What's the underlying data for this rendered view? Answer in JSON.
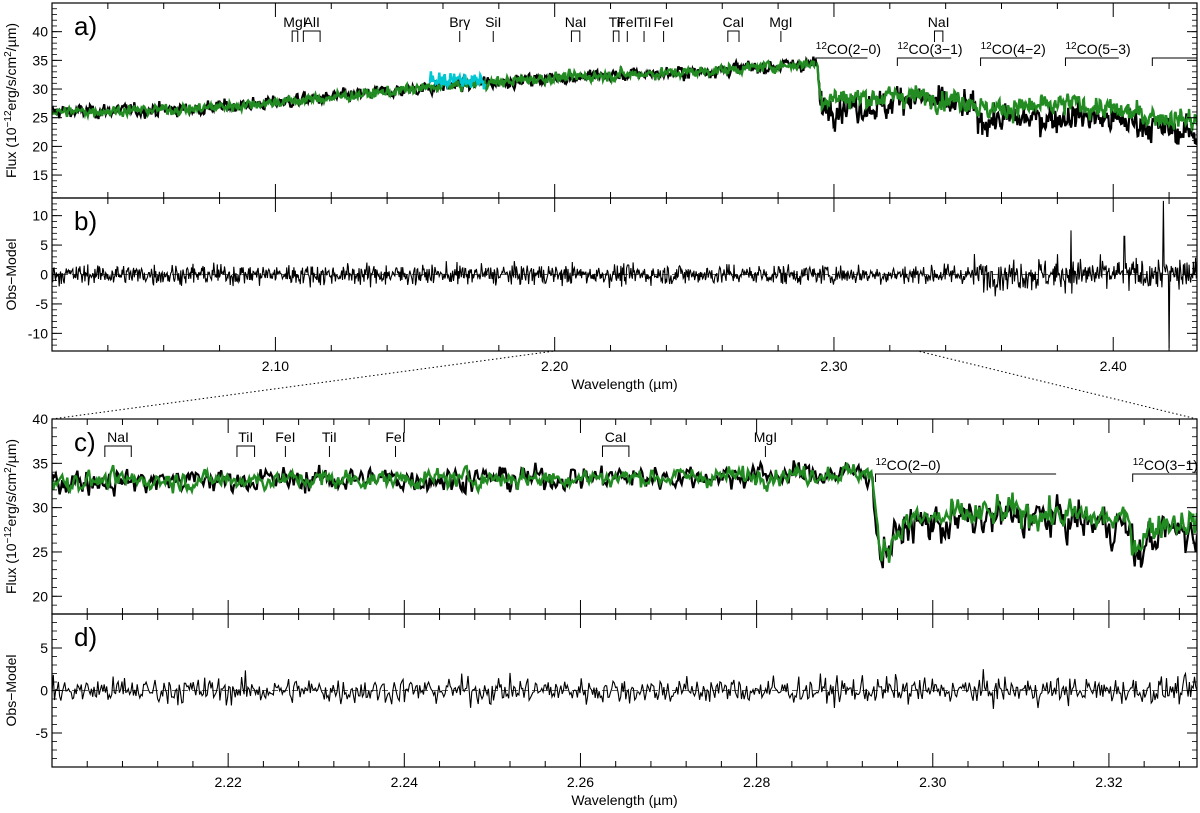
{
  "chart_data": [
    {
      "panel": "a)",
      "type": "line",
      "ylabel": "Flux (10^-12 erg/s/cm^2/µm)",
      "ylabel_parts": [
        "Flux (10",
        "−12",
        "erg/s/cm",
        "2",
        "/µm)"
      ],
      "xlim": [
        2.02,
        2.43
      ],
      "ylim": [
        11,
        45
      ],
      "yticks": [
        15,
        20,
        25,
        30,
        35,
        40
      ],
      "xticks": [
        2.1,
        2.2,
        2.3,
        2.4
      ],
      "series": [
        {
          "color": "#000000",
          "trend": [
            [
              2.02,
              26.0
            ],
            [
              2.07,
              26.5
            ],
            [
              2.12,
              28.5
            ],
            [
              2.16,
              30.5
            ],
            [
              2.2,
              32.0
            ],
            [
              2.25,
              33.0
            ],
            [
              2.294,
              34.5
            ],
            [
              2.295,
              27.0
            ],
            [
              2.32,
              27.0
            ],
            [
              2.323,
              29.0
            ],
            [
              2.35,
              26.5
            ],
            [
              2.352,
              24.5
            ],
            [
              2.38,
              25.0
            ],
            [
              2.385,
              25.5
            ],
            [
              2.41,
              24.0
            ],
            [
              2.43,
              22.0
            ]
          ]
        },
        {
          "color": "#228b22",
          "trend": [
            [
              2.02,
              26.0
            ],
            [
              2.07,
              26.5
            ],
            [
              2.12,
              28.5
            ],
            [
              2.16,
              30.5
            ],
            [
              2.2,
              32.0
            ],
            [
              2.25,
              33.0
            ],
            [
              2.294,
              34.5
            ],
            [
              2.295,
              28.5
            ],
            [
              2.32,
              28.5
            ],
            [
              2.323,
              29.0
            ],
            [
              2.35,
              28.0
            ],
            [
              2.352,
              26.5
            ],
            [
              2.38,
              27.0
            ],
            [
              2.385,
              27.5
            ],
            [
              2.41,
              25.5
            ],
            [
              2.43,
              24.5
            ]
          ]
        },
        {
          "color": "#00c8d2",
          "x_range": [
            2.155,
            2.175
          ],
          "level": 31.5
        }
      ],
      "line_markers": [
        {
          "label": "MgI",
          "x": [
            2.106,
            2.108
          ]
        },
        {
          "label": "AlI",
          "x": [
            2.11,
            2.116
          ]
        },
        {
          "label": "Brγ",
          "x": [
            2.166
          ]
        },
        {
          "label": "SiI",
          "x": [
            2.178
          ]
        },
        {
          "label": "NaI",
          "x": [
            2.206,
            2.209
          ]
        },
        {
          "label": "TiI",
          "x": [
            2.221,
            2.223
          ]
        },
        {
          "label": "FeI",
          "x": [
            2.226
          ]
        },
        {
          "label": "TiI",
          "x": [
            2.232
          ]
        },
        {
          "label": "FeI",
          "x": [
            2.239
          ]
        },
        {
          "label": "CaI",
          "x": [
            2.262,
            2.266
          ]
        },
        {
          "label": "MgI",
          "x": [
            2.281
          ]
        },
        {
          "label": "NaI",
          "x": [
            2.336,
            2.339
          ]
        }
      ],
      "bandheads": [
        {
          "label": "CO(2−0)",
          "sup": "12",
          "x": [
            2.2935,
            2.312
          ]
        },
        {
          "label": "CO(3−1)",
          "sup": "12",
          "x": [
            2.3227,
            2.342
          ]
        },
        {
          "label": "CO(4−2)",
          "sup": "12",
          "x": [
            2.3525,
            2.371
          ]
        },
        {
          "label": "CO(5−3)",
          "sup": "12",
          "x": [
            2.3829,
            2.402
          ]
        },
        {
          "label": "",
          "x": [
            2.414,
            2.43
          ]
        }
      ]
    },
    {
      "panel": "b)",
      "type": "line",
      "ylabel": "Obs−Model",
      "xlabel": "Wavelength (µm)",
      "xlim": [
        2.02,
        2.43
      ],
      "ylim": [
        -13,
        13
      ],
      "yticks": [
        -10,
        -5,
        0,
        5,
        10
      ],
      "xticks": [
        2.1,
        2.2,
        2.3,
        2.4
      ],
      "series": [
        {
          "color": "#000000",
          "mean": 0,
          "spikes": [
            [
              2.385,
              7.5
            ],
            [
              2.404,
              6.5
            ],
            [
              2.418,
              12.5
            ],
            [
              2.42,
              -12.5
            ]
          ]
        }
      ],
      "zero_line": "dashed"
    },
    {
      "panel": "c)",
      "type": "line",
      "ylabel": "Flux (10^-12 erg/s/cm^2/µm)",
      "ylabel_parts": [
        "Flux (10",
        "−12",
        "erg/s/cm",
        "2",
        "/µm)"
      ],
      "xlim": [
        2.2,
        2.33
      ],
      "ylim": [
        18,
        40
      ],
      "yticks": [
        20,
        25,
        30,
        35,
        40
      ],
      "xticks": [
        2.22,
        2.24,
        2.26,
        2.28,
        2.3,
        2.32
      ],
      "series": [
        {
          "color": "#000000",
          "trend": [
            [
              2.2,
              33.0
            ],
            [
              2.25,
              33.3
            ],
            [
              2.275,
              33.5
            ],
            [
              2.293,
              34.0
            ],
            [
              2.294,
              24.5
            ],
            [
              2.297,
              28.0
            ],
            [
              2.31,
              29.0
            ],
            [
              2.322,
              28.0
            ],
            [
              2.323,
              24.5
            ],
            [
              2.326,
              27.5
            ],
            [
              2.33,
              27.0
            ]
          ]
        },
        {
          "color": "#228b22",
          "trend": [
            [
              2.2,
              33.0
            ],
            [
              2.25,
              33.3
            ],
            [
              2.275,
              33.5
            ],
            [
              2.293,
              34.0
            ],
            [
              2.294,
              25.0
            ],
            [
              2.297,
              28.5
            ],
            [
              2.31,
              29.5
            ],
            [
              2.322,
              28.5
            ],
            [
              2.323,
              26.0
            ],
            [
              2.326,
              28.5
            ],
            [
              2.33,
              28.5
            ]
          ]
        }
      ],
      "line_markers": [
        {
          "label": "NaI",
          "x": [
            2.206,
            2.209
          ]
        },
        {
          "label": "TiI",
          "x": [
            2.221,
            2.223
          ]
        },
        {
          "label": "FeI",
          "x": [
            2.2265
          ]
        },
        {
          "label": "TiI",
          "x": [
            2.2315
          ]
        },
        {
          "label": "FeI",
          "x": [
            2.239
          ]
        },
        {
          "label": "CaI",
          "x": [
            2.2625,
            2.2655
          ]
        },
        {
          "label": "MgI",
          "x": [
            2.281
          ]
        }
      ],
      "bandheads": [
        {
          "label": "CO(2−0)",
          "sup": "12",
          "x": [
            2.2935,
            2.314
          ]
        },
        {
          "label": "CO(3−1)",
          "sup": "12",
          "x": [
            2.3227,
            2.333
          ]
        }
      ]
    },
    {
      "panel": "d)",
      "type": "line",
      "ylabel": "Obs−Model",
      "xlabel": "Wavelength (µm)",
      "xlim": [
        2.2,
        2.33
      ],
      "ylim": [
        -9,
        9
      ],
      "yticks": [
        -5,
        0,
        5
      ],
      "xticks": [
        2.22,
        2.24,
        2.26,
        2.28,
        2.3,
        2.32
      ],
      "series": [
        {
          "color": "#000000",
          "mean": 0
        }
      ],
      "zero_line": "dashed"
    }
  ]
}
